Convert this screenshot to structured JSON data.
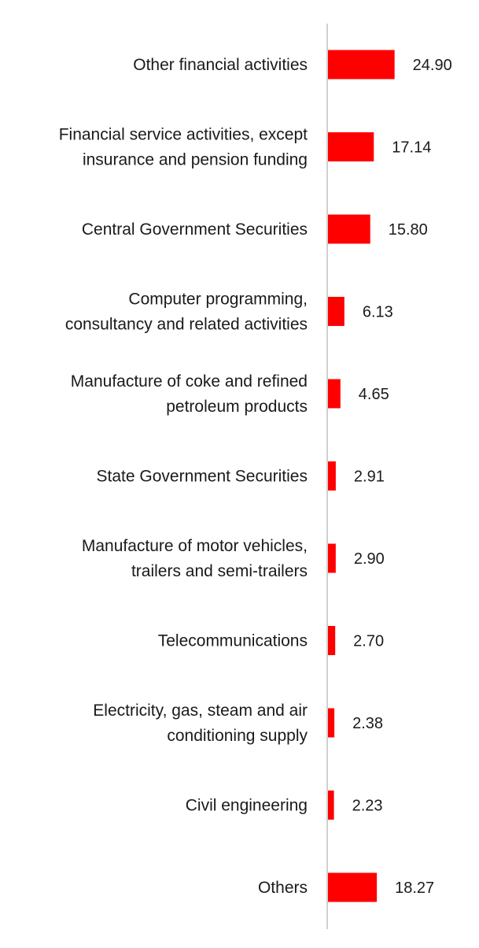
{
  "chart_data": {
    "type": "bar",
    "orientation": "horizontal",
    "title": "",
    "xlabel": "",
    "ylabel": "",
    "grid": false,
    "legend": "none",
    "bar_color": "#ff0000",
    "axis_color": "#d0d0d0",
    "categories": [
      [
        "Other financial activities"
      ],
      [
        "Financial service activities, except",
        "insurance and pension funding"
      ],
      [
        "Central Government Securities"
      ],
      [
        "Computer programming,",
        "consultancy and related activities"
      ],
      [
        "Manufacture of coke and refined",
        "petroleum products"
      ],
      [
        "State Government Securities"
      ],
      [
        "Manufacture of motor vehicles,",
        "trailers and semi-trailers"
      ],
      [
        "Telecommunications"
      ],
      [
        "Electricity, gas, steam and air",
        "conditioning supply"
      ],
      [
        "Civil engineering"
      ],
      [
        "Others"
      ]
    ],
    "values": [
      24.9,
      17.14,
      15.8,
      6.13,
      4.65,
      2.91,
      2.9,
      2.7,
      2.38,
      2.23,
      18.27
    ],
    "value_labels": [
      "24.90",
      "17.14",
      "15.80",
      "6.13",
      "4.65",
      "2.91",
      "2.90",
      "2.70",
      "2.38",
      "2.23",
      "18.27"
    ],
    "xlim": [
      0,
      25
    ]
  }
}
